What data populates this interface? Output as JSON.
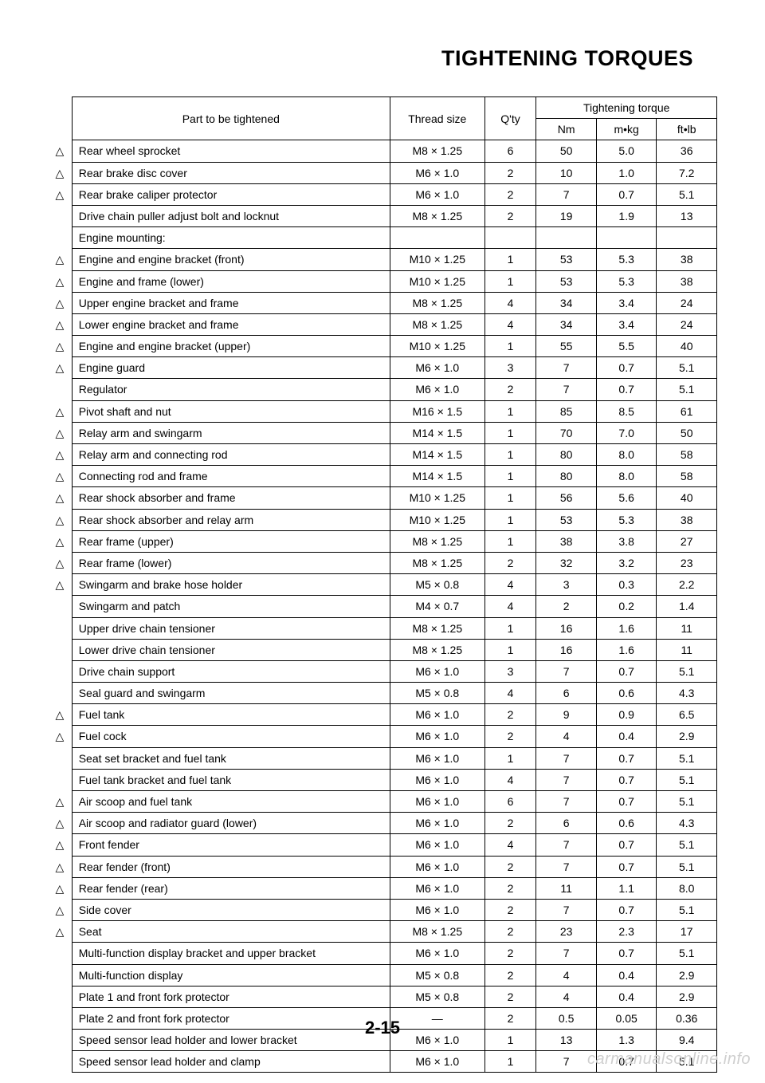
{
  "page": {
    "title": "TIGHTENING TORQUES",
    "number": "2-15",
    "watermark": "carmanualsonline.info"
  },
  "table": {
    "headers": {
      "part": "Part to be tightened",
      "thread": "Thread size",
      "qty": "Q'ty",
      "torque_group": "Tightening torque",
      "nm": "Nm",
      "mkg": "m•kg",
      "ftlb": "ft•lb"
    },
    "rows": [
      {
        "mark": "△",
        "part": "Rear wheel sprocket",
        "thread": "M8 × 1.25",
        "qty": "6",
        "nm": "50",
        "mkg": "5.0",
        "ftlb": "36"
      },
      {
        "mark": "△",
        "part": "Rear brake disc cover",
        "thread": "M6 × 1.0",
        "qty": "2",
        "nm": "10",
        "mkg": "1.0",
        "ftlb": "7.2"
      },
      {
        "mark": "△",
        "part": "Rear brake caliper protector",
        "thread": "M6 × 1.0",
        "qty": "2",
        "nm": "7",
        "mkg": "0.7",
        "ftlb": "5.1"
      },
      {
        "mark": "",
        "part": "Drive chain puller adjust bolt and locknut",
        "thread": "M8 × 1.25",
        "qty": "2",
        "nm": "19",
        "mkg": "1.9",
        "ftlb": "13"
      },
      {
        "mark": "",
        "part": "Engine mounting:",
        "thread": "",
        "qty": "",
        "nm": "",
        "mkg": "",
        "ftlb": ""
      },
      {
        "mark": "△",
        "part": "Engine and engine bracket (front)",
        "thread": "M10 × 1.25",
        "qty": "1",
        "nm": "53",
        "mkg": "5.3",
        "ftlb": "38"
      },
      {
        "mark": "△",
        "part": "Engine and frame (lower)",
        "thread": "M10 × 1.25",
        "qty": "1",
        "nm": "53",
        "mkg": "5.3",
        "ftlb": "38"
      },
      {
        "mark": "△",
        "part": "Upper engine bracket and frame",
        "thread": "M8 × 1.25",
        "qty": "4",
        "nm": "34",
        "mkg": "3.4",
        "ftlb": "24"
      },
      {
        "mark": "△",
        "part": "Lower engine bracket and frame",
        "thread": "M8 × 1.25",
        "qty": "4",
        "nm": "34",
        "mkg": "3.4",
        "ftlb": "24"
      },
      {
        "mark": "△",
        "part": "Engine and engine bracket (upper)",
        "thread": "M10 × 1.25",
        "qty": "1",
        "nm": "55",
        "mkg": "5.5",
        "ftlb": "40"
      },
      {
        "mark": "△",
        "part": "Engine guard",
        "thread": "M6 × 1.0",
        "qty": "3",
        "nm": "7",
        "mkg": "0.7",
        "ftlb": "5.1"
      },
      {
        "mark": "",
        "part": "Regulator",
        "thread": "M6 × 1.0",
        "qty": "2",
        "nm": "7",
        "mkg": "0.7",
        "ftlb": "5.1"
      },
      {
        "mark": "△",
        "part": "Pivot shaft and nut",
        "thread": "M16 × 1.5",
        "qty": "1",
        "nm": "85",
        "mkg": "8.5",
        "ftlb": "61"
      },
      {
        "mark": "△",
        "part": "Relay arm and swingarm",
        "thread": "M14 × 1.5",
        "qty": "1",
        "nm": "70",
        "mkg": "7.0",
        "ftlb": "50"
      },
      {
        "mark": "△",
        "part": "Relay arm and connecting rod",
        "thread": "M14 × 1.5",
        "qty": "1",
        "nm": "80",
        "mkg": "8.0",
        "ftlb": "58"
      },
      {
        "mark": "△",
        "part": "Connecting rod and frame",
        "thread": "M14 × 1.5",
        "qty": "1",
        "nm": "80",
        "mkg": "8.0",
        "ftlb": "58"
      },
      {
        "mark": "△",
        "part": "Rear shock absorber and frame",
        "thread": "M10 × 1.25",
        "qty": "1",
        "nm": "56",
        "mkg": "5.6",
        "ftlb": "40"
      },
      {
        "mark": "△",
        "part": "Rear shock absorber and relay arm",
        "thread": "M10 × 1.25",
        "qty": "1",
        "nm": "53",
        "mkg": "5.3",
        "ftlb": "38"
      },
      {
        "mark": "△",
        "part": "Rear frame (upper)",
        "thread": "M8 × 1.25",
        "qty": "1",
        "nm": "38",
        "mkg": "3.8",
        "ftlb": "27"
      },
      {
        "mark": "△",
        "part": "Rear frame (lower)",
        "thread": "M8 × 1.25",
        "qty": "2",
        "nm": "32",
        "mkg": "3.2",
        "ftlb": "23"
      },
      {
        "mark": "△",
        "part": "Swingarm and brake hose holder",
        "thread": "M5 × 0.8",
        "qty": "4",
        "nm": "3",
        "mkg": "0.3",
        "ftlb": "2.2"
      },
      {
        "mark": "",
        "part": "Swingarm and patch",
        "thread": "M4 × 0.7",
        "qty": "4",
        "nm": "2",
        "mkg": "0.2",
        "ftlb": "1.4"
      },
      {
        "mark": "",
        "part": "Upper drive chain tensioner",
        "thread": "M8 × 1.25",
        "qty": "1",
        "nm": "16",
        "mkg": "1.6",
        "ftlb": "11"
      },
      {
        "mark": "",
        "part": "Lower drive chain tensioner",
        "thread": "M8 × 1.25",
        "qty": "1",
        "nm": "16",
        "mkg": "1.6",
        "ftlb": "11"
      },
      {
        "mark": "",
        "part": "Drive chain support",
        "thread": "M6 × 1.0",
        "qty": "3",
        "nm": "7",
        "mkg": "0.7",
        "ftlb": "5.1"
      },
      {
        "mark": "",
        "part": "Seal guard and swingarm",
        "thread": "M5 × 0.8",
        "qty": "4",
        "nm": "6",
        "mkg": "0.6",
        "ftlb": "4.3"
      },
      {
        "mark": "△",
        "part": "Fuel tank",
        "thread": "M6 × 1.0",
        "qty": "2",
        "nm": "9",
        "mkg": "0.9",
        "ftlb": "6.5"
      },
      {
        "mark": "△",
        "part": "Fuel cock",
        "thread": "M6 × 1.0",
        "qty": "2",
        "nm": "4",
        "mkg": "0.4",
        "ftlb": "2.9"
      },
      {
        "mark": "",
        "part": "Seat set bracket and fuel tank",
        "thread": "M6 × 1.0",
        "qty": "1",
        "nm": "7",
        "mkg": "0.7",
        "ftlb": "5.1"
      },
      {
        "mark": "",
        "part": "Fuel tank bracket and fuel tank",
        "thread": "M6 × 1.0",
        "qty": "4",
        "nm": "7",
        "mkg": "0.7",
        "ftlb": "5.1"
      },
      {
        "mark": "△",
        "part": "Air scoop and fuel tank",
        "thread": "M6 × 1.0",
        "qty": "6",
        "nm": "7",
        "mkg": "0.7",
        "ftlb": "5.1"
      },
      {
        "mark": "△",
        "part": "Air scoop and radiator guard (lower)",
        "thread": "M6 × 1.0",
        "qty": "2",
        "nm": "6",
        "mkg": "0.6",
        "ftlb": "4.3"
      },
      {
        "mark": "△",
        "part": "Front fender",
        "thread": "M6 × 1.0",
        "qty": "4",
        "nm": "7",
        "mkg": "0.7",
        "ftlb": "5.1"
      },
      {
        "mark": "△",
        "part": "Rear fender (front)",
        "thread": "M6 × 1.0",
        "qty": "2",
        "nm": "7",
        "mkg": "0.7",
        "ftlb": "5.1"
      },
      {
        "mark": "△",
        "part": "Rear fender (rear)",
        "thread": "M6 × 1.0",
        "qty": "2",
        "nm": "11",
        "mkg": "1.1",
        "ftlb": "8.0"
      },
      {
        "mark": "△",
        "part": "Side cover",
        "thread": "M6 × 1.0",
        "qty": "2",
        "nm": "7",
        "mkg": "0.7",
        "ftlb": "5.1"
      },
      {
        "mark": "△",
        "part": "Seat",
        "thread": "M8 × 1.25",
        "qty": "2",
        "nm": "23",
        "mkg": "2.3",
        "ftlb": "17"
      },
      {
        "mark": "",
        "part": "Multi-function display bracket and upper bracket",
        "thread": "M6 × 1.0",
        "qty": "2",
        "nm": "7",
        "mkg": "0.7",
        "ftlb": "5.1"
      },
      {
        "mark": "",
        "part": "Multi-function display",
        "thread": "M5 × 0.8",
        "qty": "2",
        "nm": "4",
        "mkg": "0.4",
        "ftlb": "2.9"
      },
      {
        "mark": "",
        "part": "Plate 1 and front fork protector",
        "thread": "M5 × 0.8",
        "qty": "2",
        "nm": "4",
        "mkg": "0.4",
        "ftlb": "2.9"
      },
      {
        "mark": "",
        "part": "Plate 2 and front fork protector",
        "thread": "—",
        "qty": "2",
        "nm": "0.5",
        "mkg": "0.05",
        "ftlb": "0.36"
      },
      {
        "mark": "",
        "part": "Speed sensor lead holder and lower bracket",
        "thread": "M6 × 1.0",
        "qty": "1",
        "nm": "13",
        "mkg": "1.3",
        "ftlb": "9.4"
      },
      {
        "mark": "",
        "part": "Speed sensor lead holder and clamp",
        "thread": "M6 × 1.0",
        "qty": "1",
        "nm": "7",
        "mkg": "0.7",
        "ftlb": "5.1"
      }
    ]
  }
}
